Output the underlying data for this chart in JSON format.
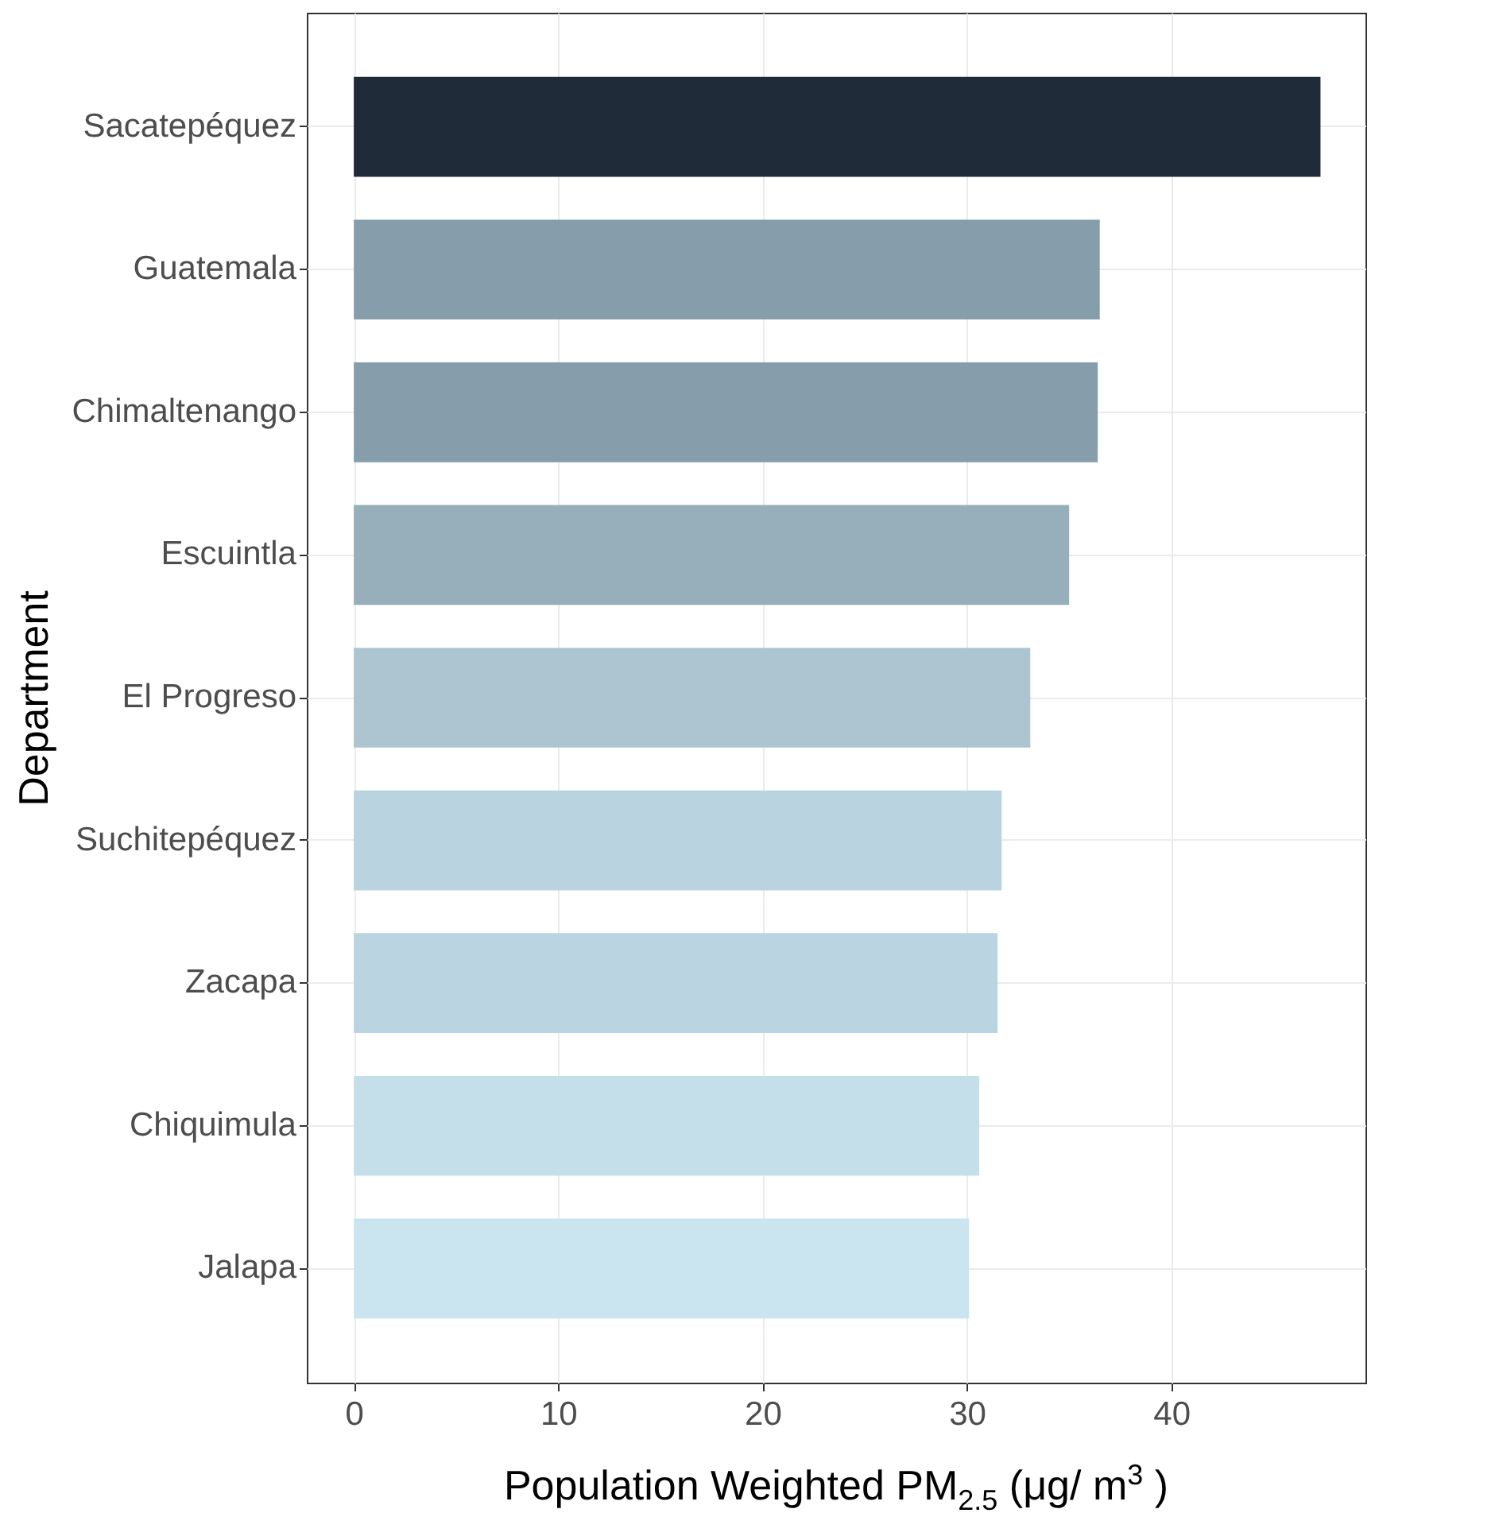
{
  "chart_data": {
    "type": "bar",
    "orientation": "horizontal",
    "xlabel": "Population Weighted PM$_{2.5}$ (μg/ m$^{3}$ )",
    "ylabel": "Department",
    "categories": [
      "Sacatepéquez",
      "Guatemala",
      "Chimaltenango",
      "Escuintla",
      "El Progreso",
      "Suchitepéquez",
      "Zacapa",
      "Chiquimula",
      "Jalapa"
    ],
    "values": [
      47.3,
      36.5,
      36.4,
      35.0,
      33.1,
      31.7,
      31.5,
      30.6,
      30.1
    ],
    "colors": [
      "#1f2b38",
      "#869eab",
      "#869eab",
      "#97afbb",
      "#adc5d1",
      "#b9d4e0",
      "#bad5e1",
      "#c4dfea",
      "#cae5f0"
    ],
    "xlim": [
      -2.3,
      49.5
    ],
    "xticks": [
      0,
      10,
      20,
      30,
      40
    ],
    "grid": true,
    "legend": false
  }
}
